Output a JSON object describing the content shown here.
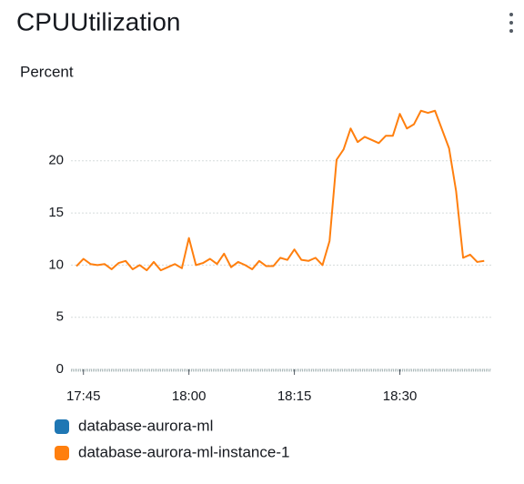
{
  "chart_data": {
    "type": "line",
    "title": "CPUUtilization",
    "y_label": "Percent",
    "x": [
      "17:44",
      "17:45",
      "17:46",
      "17:47",
      "17:48",
      "17:49",
      "17:50",
      "17:51",
      "17:52",
      "17:53",
      "17:54",
      "17:55",
      "17:56",
      "17:57",
      "17:58",
      "17:59",
      "18:00",
      "18:01",
      "18:02",
      "18:03",
      "18:04",
      "18:05",
      "18:06",
      "18:07",
      "18:08",
      "18:09",
      "18:10",
      "18:11",
      "18:12",
      "18:13",
      "18:14",
      "18:15",
      "18:16",
      "18:17",
      "18:18",
      "18:19",
      "18:20",
      "18:21",
      "18:22",
      "18:23",
      "18:24",
      "18:25",
      "18:26",
      "18:27",
      "18:28",
      "18:29",
      "18:30",
      "18:31",
      "18:32",
      "18:33",
      "18:34",
      "18:35",
      "18:36",
      "18:37",
      "18:38",
      "18:39",
      "18:40",
      "18:41",
      "18:42"
    ],
    "series": [
      {
        "name": "database-aurora-ml",
        "color": "#1f77b4",
        "values": [
          null,
          null,
          null,
          null,
          null,
          null,
          null,
          null,
          null,
          null,
          null,
          null,
          null,
          null,
          null,
          null,
          null,
          null,
          null,
          null,
          null,
          null,
          null,
          null,
          null,
          null,
          null,
          null,
          null,
          null,
          null,
          null,
          null,
          null,
          null,
          null,
          null,
          null,
          null,
          null,
          null,
          null,
          null,
          null,
          null,
          null,
          null,
          null,
          null,
          null,
          null,
          null,
          null,
          null,
          null,
          null,
          null,
          null,
          null
        ]
      },
      {
        "name": "database-aurora-ml-instance-1",
        "color": "#ff7f0e",
        "values": [
          9.9,
          10.6,
          10.1,
          10.0,
          10.1,
          9.6,
          10.2,
          10.4,
          9.6,
          10.0,
          9.5,
          10.3,
          9.5,
          9.8,
          10.1,
          9.7,
          12.6,
          10.0,
          10.2,
          10.6,
          10.1,
          11.1,
          9.8,
          10.3,
          10.0,
          9.6,
          10.4,
          9.9,
          9.9,
          10.7,
          10.5,
          11.5,
          10.5,
          10.4,
          10.7,
          10.0,
          12.3,
          20.1,
          21.1,
          23.1,
          21.8,
          22.3,
          22.0,
          21.7,
          22.4,
          22.4,
          24.5,
          23.1,
          23.5,
          24.8,
          24.6,
          24.8,
          23.0,
          21.2,
          17.1,
          10.7,
          11.0,
          10.3,
          10.4
        ]
      }
    ],
    "xlim": [
      "17:44",
      "18:43"
    ],
    "xticks": [
      "17:45",
      "18:00",
      "18:15",
      "18:30"
    ],
    "ylim": [
      0,
      26
    ],
    "yticks": [
      0,
      5,
      10,
      15,
      20
    ],
    "grid": true
  }
}
